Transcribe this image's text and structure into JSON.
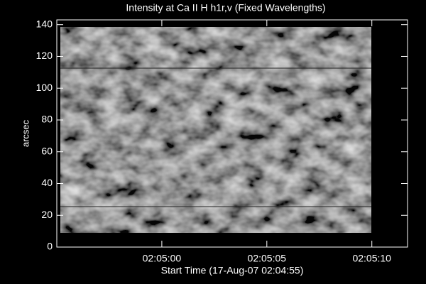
{
  "chart_data": {
    "type": "image",
    "title": "Intensity at Ca II H h1r,v (Fixed Wavelengths)",
    "x_label": "Start Time (17-Aug-07 02:04:55)",
    "y_label": "arcsec",
    "xlim": [
      0,
      16.7
    ],
    "xticks": [
      {
        "value": 5,
        "label": "02:05:00"
      },
      {
        "value": 10,
        "label": "02:05:05"
      },
      {
        "value": 15,
        "label": "02:05:10"
      }
    ],
    "ylim": [
      0,
      143
    ],
    "yticks": [
      0,
      20,
      40,
      60,
      80,
      100,
      120,
      140
    ],
    "grid": false
  }
}
